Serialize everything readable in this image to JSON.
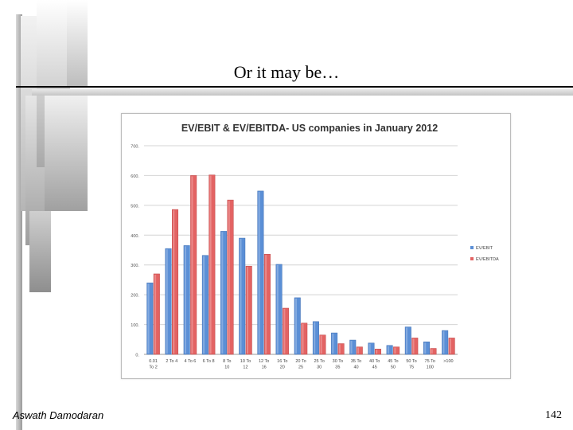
{
  "slide": {
    "title": "Or it may be…",
    "author": "Aswath Damodaran",
    "page_number": "142"
  },
  "chart_data": {
    "type": "bar",
    "title": "EV/EBIT & EV/EBITDA- US companies in January 2012",
    "xlabel": "",
    "ylabel": "",
    "ylim": [
      0,
      700
    ],
    "yticks": [
      0,
      100,
      200,
      300,
      400,
      500,
      600,
      700
    ],
    "ytick_labels": [
      "0.",
      "100.",
      "200.",
      "300.",
      "400.",
      "500.",
      "600.",
      "700."
    ],
    "grid": true,
    "legend_position": "right",
    "categories": [
      [
        "0.01",
        "To 2"
      ],
      [
        "2 To 4"
      ],
      [
        "4 To 6"
      ],
      [
        "6 To 8"
      ],
      [
        "8 To",
        "10"
      ],
      [
        "10 To",
        "12"
      ],
      [
        "12 To",
        "16"
      ],
      [
        "16 To",
        "20"
      ],
      [
        "20 To",
        "25"
      ],
      [
        "25 To",
        "30"
      ],
      [
        "30 To",
        "35"
      ],
      [
        "35 To",
        "40"
      ],
      [
        "40 To",
        "45"
      ],
      [
        "45 To",
        "50"
      ],
      [
        "50 To",
        "75"
      ],
      [
        "75 To",
        "100"
      ],
      [
        ">100"
      ]
    ],
    "series": [
      {
        "name": "EV/EBIT",
        "color": "#5b8fd6",
        "values": [
          240,
          355,
          365,
          332,
          413,
          390,
          548,
          302,
          190,
          110,
          72,
          48,
          38,
          30,
          92,
          42,
          80
        ]
      },
      {
        "name": "EV/EBITDA",
        "color": "#e36363",
        "values": [
          270,
          486,
          600,
          602,
          518,
          296,
          336,
          155,
          105,
          65,
          36,
          25,
          18,
          25,
          55,
          20,
          55
        ]
      }
    ]
  }
}
